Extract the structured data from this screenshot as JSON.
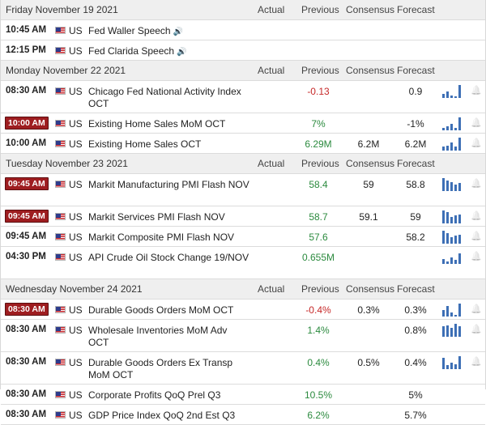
{
  "columns": {
    "actual": "Actual",
    "previous": "Previous",
    "consensus": "Consensus",
    "forecast": "Forecast"
  },
  "days": [
    {
      "date": "Friday November 19 2021",
      "events": [
        {
          "time": "10:45 AM",
          "badge": false,
          "country": "US",
          "name": "Fed Waller Speech",
          "speech": true,
          "actual": "",
          "previous": "",
          "previous_color": "",
          "consensus": "",
          "forecast": "",
          "bars": []
        },
        {
          "time": "12:15 PM",
          "badge": false,
          "country": "US",
          "name": "Fed Clarida Speech",
          "speech": true,
          "actual": "",
          "previous": "",
          "previous_color": "",
          "consensus": "",
          "forecast": "",
          "bars": []
        }
      ]
    },
    {
      "date": "Monday November 22 2021",
      "events": [
        {
          "time": "08:30 AM",
          "badge": false,
          "country": "US",
          "name": "Chicago Fed National Activity Index OCT",
          "speech": false,
          "actual": "",
          "previous": "-0.13",
          "previous_color": "red",
          "consensus": "",
          "forecast": "0.9",
          "bars": [
            0.3,
            0.5,
            0.2,
            0.1,
            1.0
          ]
        },
        {
          "time": "10:00 AM",
          "badge": true,
          "country": "US",
          "name": "Existing Home Sales MoM OCT",
          "speech": false,
          "actual": "",
          "previous": "7%",
          "previous_color": "green",
          "consensus": "",
          "forecast": "-1%",
          "bars": [
            0.2,
            0.3,
            0.5,
            0.2,
            1.0
          ]
        },
        {
          "time": "10:00 AM",
          "badge": false,
          "country": "US",
          "name": "Existing Home Sales OCT",
          "speech": false,
          "actual": "",
          "previous": "6.29M",
          "previous_color": "green",
          "consensus": "6.2M",
          "forecast": "6.2M",
          "bars": [
            0.3,
            0.4,
            0.6,
            0.3,
            1.0
          ]
        }
      ]
    },
    {
      "date": "Tuesday November 23 2021",
      "events": [
        {
          "time": "09:45 AM",
          "badge": true,
          "country": "US",
          "name": "Markit Manufacturing PMI Flash NOV",
          "speech": false,
          "actual": "",
          "previous": "58.4",
          "previous_color": "green",
          "consensus": "59",
          "forecast": "58.8",
          "bars": [
            1.0,
            0.8,
            0.7,
            0.5,
            0.6
          ]
        },
        {
          "time": "09:45 AM",
          "badge": true,
          "country": "US",
          "name": "Markit Services PMI Flash NOV",
          "speech": false,
          "actual": "",
          "previous": "58.7",
          "previous_color": "green",
          "consensus": "59.1",
          "forecast": "59",
          "bars": [
            1.0,
            0.9,
            0.5,
            0.6,
            0.7
          ]
        },
        {
          "time": "09:45 AM",
          "badge": false,
          "country": "US",
          "name": "Markit Composite PMI Flash NOV",
          "speech": false,
          "actual": "",
          "previous": "57.6",
          "previous_color": "green",
          "consensus": "",
          "forecast": "58.2",
          "bars": [
            1.0,
            0.8,
            0.5,
            0.6,
            0.7
          ]
        },
        {
          "time": "04:30 PM",
          "badge": false,
          "country": "US",
          "name": "API Crude Oil Stock Change 19/NOV",
          "speech": false,
          "actual": "",
          "previous": "0.655M",
          "previous_color": "green",
          "consensus": "",
          "forecast": "",
          "bars": [
            0.4,
            0.2,
            0.5,
            0.3,
            0.8
          ]
        }
      ]
    },
    {
      "date": "Wednesday November 24 2021",
      "events": [
        {
          "time": "08:30 AM",
          "badge": true,
          "country": "US",
          "name": "Durable Goods Orders MoM OCT",
          "speech": false,
          "actual": "",
          "previous": "-0.4%",
          "previous_color": "red",
          "consensus": "0.3%",
          "forecast": "0.3%",
          "bars": [
            0.5,
            0.8,
            0.3,
            0.1,
            1.0
          ]
        },
        {
          "time": "08:30 AM",
          "badge": false,
          "country": "US",
          "name": "Wholesale Inventories MoM Adv OCT",
          "speech": false,
          "actual": "",
          "previous": "1.4%",
          "previous_color": "green",
          "consensus": "",
          "forecast": "0.8%",
          "bars": [
            0.8,
            0.9,
            0.7,
            1.0,
            0.8
          ]
        },
        {
          "time": "08:30 AM",
          "badge": false,
          "country": "US",
          "name": "Durable Goods Orders Ex Transp MoM OCT",
          "speech": false,
          "actual": "",
          "previous": "0.4%",
          "previous_color": "green",
          "consensus": "0.5%",
          "forecast": "0.4%",
          "bars": [
            0.9,
            0.3,
            0.5,
            0.4,
            1.0
          ]
        },
        {
          "time": "08:30 AM",
          "badge": false,
          "country": "US",
          "name": "Corporate Profits QoQ Prel Q3",
          "speech": false,
          "actual": "",
          "previous": "10.5%",
          "previous_color": "green",
          "consensus": "",
          "forecast": "5%",
          "bars": []
        },
        {
          "time": "08:30 AM",
          "badge": false,
          "country": "US",
          "name": "GDP Price Index QoQ 2nd Est Q3",
          "speech": false,
          "actual": "",
          "previous": "6.2%",
          "previous_color": "green",
          "consensus": "",
          "forecast": "5.7%",
          "bars": []
        }
      ]
    }
  ]
}
